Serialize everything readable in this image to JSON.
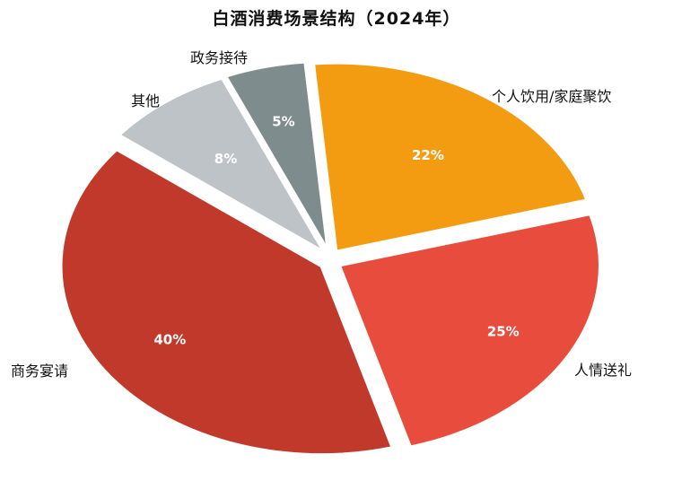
{
  "chart_data": {
    "type": "pie",
    "title": "白酒消费场景结构（2024年）",
    "legend": "none",
    "slices": [
      {
        "label": "个人饮用/家庭聚饮",
        "value": 22,
        "display": "22%",
        "color": "#F39C12"
      },
      {
        "label": "人情送礼",
        "value": 25,
        "display": "25%",
        "color": "#E74C3C"
      },
      {
        "label": "商务宴请",
        "value": 40,
        "display": "40%",
        "color": "#C0392B"
      },
      {
        "label": "其他",
        "value": 8,
        "display": "8%",
        "color": "#BDC3C7"
      },
      {
        "label": "政务接待",
        "value": 5,
        "display": "5%",
        "color": "#7F8C8D"
      }
    ]
  }
}
